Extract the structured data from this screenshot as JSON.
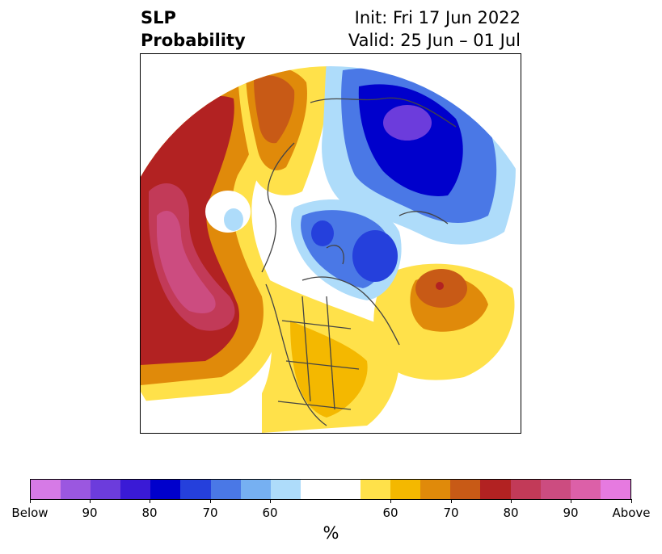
{
  "title": {
    "left_line1": "SLP",
    "left_line2": "Probability",
    "right_line1": "Init: Fri 17 Jun 2022",
    "right_line2": "Valid: 25 Jun – 01 Jul"
  },
  "colorbar": {
    "colors": [
      "#d67ae6",
      "#9b57e0",
      "#6c3cdc",
      "#3a1ad6",
      "#0000cc",
      "#2540dc",
      "#4a78e6",
      "#76b0f2",
      "#aedcfa",
      "#ffffff",
      "#ffffff",
      "#ffe14a",
      "#f4b800",
      "#e08a0a",
      "#c85a16",
      "#b22222",
      "#c23a58",
      "#cc4c80",
      "#dc60a8",
      "#e67ae0"
    ],
    "tick_labels": [
      "Below",
      "90",
      "80",
      "70",
      "60",
      "60",
      "70",
      "80",
      "90",
      "Above"
    ],
    "unit": "%"
  },
  "map": {
    "projection": "north polar stereographic",
    "below_color": "#2540dc",
    "above_color": "#b22222"
  }
}
